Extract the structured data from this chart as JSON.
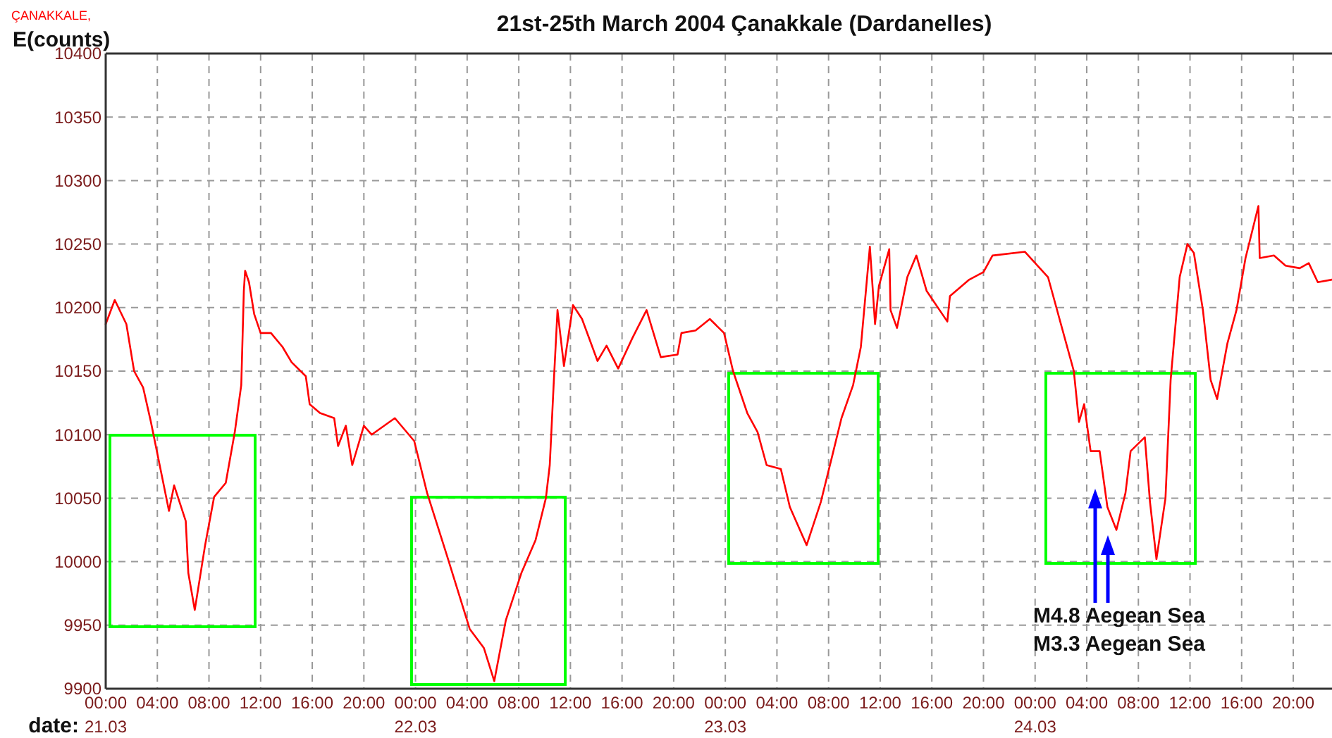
{
  "chart_data": {
    "type": "line",
    "title": "21st-25th March  2004  Çanakkale (Dardanelles)",
    "subtitle": "ÇANAKKALE,",
    "ylabel": "E(counts)",
    "xlabel": "date:",
    "xlim": [
      "2004-03-21T00:00",
      "2004-03-24T23:00"
    ],
    "xticks": [
      {
        "value": "2004-03-21T00:00",
        "label": "00:00\n21.03"
      },
      {
        "value": "2004-03-21T04:00",
        "label": "04:00"
      },
      {
        "value": "2004-03-21T08:00",
        "label": "08:00"
      },
      {
        "value": "2004-03-21T12:00",
        "label": "12:00"
      },
      {
        "value": "2004-03-21T16:00",
        "label": "16:00"
      },
      {
        "value": "2004-03-21T20:00",
        "label": "20:00"
      },
      {
        "value": "2004-03-22T00:00",
        "label": "00:00\n22.03"
      },
      {
        "value": "2004-03-22T04:00",
        "label": "04:00"
      },
      {
        "value": "2004-03-22T08:00",
        "label": "08:00"
      },
      {
        "value": "2004-03-22T12:00",
        "label": "12:00"
      },
      {
        "value": "2004-03-22T16:00",
        "label": "16:00"
      },
      {
        "value": "2004-03-22T20:00",
        "label": "20:00"
      },
      {
        "value": "2004-03-23T00:00",
        "label": "00:00\n23.03"
      },
      {
        "value": "2004-03-23T04:00",
        "label": "04:00"
      },
      {
        "value": "2004-03-23T08:00",
        "label": "08:00"
      },
      {
        "value": "2004-03-23T12:00",
        "label": "12:00"
      },
      {
        "value": "2004-03-23T16:00",
        "label": "16:00"
      },
      {
        "value": "2004-03-23T20:00",
        "label": "20:00"
      },
      {
        "value": "2004-03-24T00:00",
        "label": "00:00\n24.03"
      },
      {
        "value": "2004-03-24T04:00",
        "label": "04:00"
      },
      {
        "value": "2004-03-24T08:00",
        "label": "08:00"
      },
      {
        "value": "2004-03-24T12:00",
        "label": "12:00"
      },
      {
        "value": "2004-03-24T16:00",
        "label": "16:00"
      },
      {
        "value": "2004-03-24T20:00",
        "label": "20:00"
      }
    ],
    "ylim": [
      9900,
      10400
    ],
    "yticks": [
      9900,
      9950,
      10000,
      10050,
      10100,
      10150,
      10200,
      10250,
      10300,
      10350,
      10400
    ],
    "grid": true,
    "line_style": "solid",
    "annotations": [
      "M4.8 Aegean Sea",
      "M3.3 Aegean Sea"
    ],
    "series": [
      {
        "color": "#ff0000",
        "x": [
          "2004-03-21T00:00",
          "2004-03-21T00:42",
          "2004-03-21T01:36",
          "2004-03-21T02:12",
          "2004-03-21T02:54",
          "2004-03-21T03:30",
          "2004-03-21T04:24",
          "2004-03-21T04:54",
          "2004-03-21T05:18",
          "2004-03-21T06:12",
          "2004-03-21T06:24",
          "2004-03-21T06:54",
          "2004-03-21T07:42",
          "2004-03-21T08:24",
          "2004-03-21T09:18",
          "2004-03-21T10:00",
          "2004-03-21T10:30",
          "2004-03-21T10:42",
          "2004-03-21T10:48",
          "2004-03-21T11:06",
          "2004-03-21T11:30",
          "2004-03-21T12:00",
          "2004-03-21T12:48",
          "2004-03-21T13:42",
          "2004-03-21T14:24",
          "2004-03-21T15:30",
          "2004-03-21T15:48",
          "2004-03-21T16:36",
          "2004-03-21T17:42",
          "2004-03-21T18:00",
          "2004-03-21T18:36",
          "2004-03-21T19:06",
          "2004-03-21T20:00",
          "2004-03-21T20:36",
          "2004-03-21T22:24",
          "2004-03-21T23:54",
          "2004-03-22T00:54",
          "2004-03-22T02:24",
          "2004-03-22T04:12",
          "2004-03-22T05:18",
          "2004-03-22T06:06",
          "2004-03-22T07:00",
          "2004-03-22T08:12",
          "2004-03-22T09:18",
          "2004-03-22T10:06",
          "2004-03-22T10:24",
          "2004-03-22T10:42",
          "2004-03-22T11:00",
          "2004-03-22T11:30",
          "2004-03-22T12:12",
          "2004-03-22T12:54",
          "2004-03-22T14:06",
          "2004-03-22T14:48",
          "2004-03-22T15:42",
          "2004-03-22T16:48",
          "2004-03-22T17:54",
          "2004-03-22T19:00",
          "2004-03-22T20:18",
          "2004-03-22T20:36",
          "2004-03-22T21:42",
          "2004-03-22T22:48",
          "2004-03-22T23:54",
          "2004-03-23T00:36",
          "2004-03-23T01:42",
          "2004-03-23T02:30",
          "2004-03-23T03:12",
          "2004-03-23T04:18",
          "2004-03-23T05:00",
          "2004-03-23T06:18",
          "2004-03-23T07:24",
          "2004-03-23T08:18",
          "2004-03-23T09:00",
          "2004-03-23T09:54",
          "2004-03-23T10:30",
          "2004-03-23T11:12",
          "2004-03-23T11:36",
          "2004-03-23T11:54",
          "2004-03-23T12:42",
          "2004-03-23T12:48",
          "2004-03-23T13:18",
          "2004-03-23T14:06",
          "2004-03-23T14:48",
          "2004-03-23T15:36",
          "2004-03-23T17:12",
          "2004-03-23T17:24",
          "2004-03-23T18:54",
          "2004-03-23T20:00",
          "2004-03-23T20:42",
          "2004-03-23T23:12",
          "2004-03-24T01:00",
          "2004-03-24T03:00",
          "2004-03-24T03:24",
          "2004-03-24T03:48",
          "2004-03-24T04:18",
          "2004-03-24T05:00",
          "2004-03-24T05:36",
          "2004-03-24T06:18",
          "2004-03-24T07:00",
          "2004-03-24T07:24",
          "2004-03-24T08:30",
          "2004-03-24T08:54",
          "2004-03-24T09:24",
          "2004-03-24T10:06",
          "2004-03-24T10:30",
          "2004-03-24T11:12",
          "2004-03-24T11:48",
          "2004-03-24T12:18",
          "2004-03-24T13:00",
          "2004-03-24T13:36",
          "2004-03-24T14:06",
          "2004-03-24T14:54",
          "2004-03-24T15:36",
          "2004-03-24T16:18",
          "2004-03-24T17:18",
          "2004-03-24T17:24",
          "2004-03-24T18:30",
          "2004-03-24T19:24",
          "2004-03-24T20:30",
          "2004-03-24T21:12",
          "2004-03-24T21:54",
          "2004-03-24T23:00"
        ],
        "values": [
          10187,
          10206,
          10187,
          10150,
          10137,
          10110,
          10065,
          10040,
          10060,
          10032,
          9991,
          9962,
          10013,
          10051,
          10062,
          10102,
          10139,
          10213,
          10229,
          10220,
          10195,
          10180,
          10180,
          10169,
          10157,
          10146,
          10124,
          10117,
          10113,
          10091,
          10107,
          10076,
          10107,
          10100,
          10113,
          10095,
          10054,
          10006,
          9947,
          9932,
          9906,
          9954,
          9991,
          10017,
          10050,
          10076,
          10139,
          10198,
          10154,
          10202,
          10191,
          10158,
          10170,
          10152,
          10176,
          10198,
          10161,
          10163,
          10180,
          10182,
          10191,
          10180,
          10150,
          10117,
          10102,
          10076,
          10073,
          10043,
          10013,
          10047,
          10084,
          10113,
          10139,
          10169,
          10248,
          10187,
          10217,
          10246,
          10198,
          10184,
          10224,
          10241,
          10213,
          10189,
          10209,
          10222,
          10228,
          10241,
          10244,
          10224,
          10150,
          10110,
          10124,
          10087,
          10087,
          10043,
          10025,
          10054,
          10087,
          10098,
          10047,
          10002,
          10050,
          10143,
          10224,
          10250,
          10243,
          10198,
          10143,
          10128,
          10172,
          10198,
          10239,
          10280,
          10239,
          10241,
          10233,
          10231,
          10235,
          10220,
          10222
        ]
      }
    ]
  }
}
